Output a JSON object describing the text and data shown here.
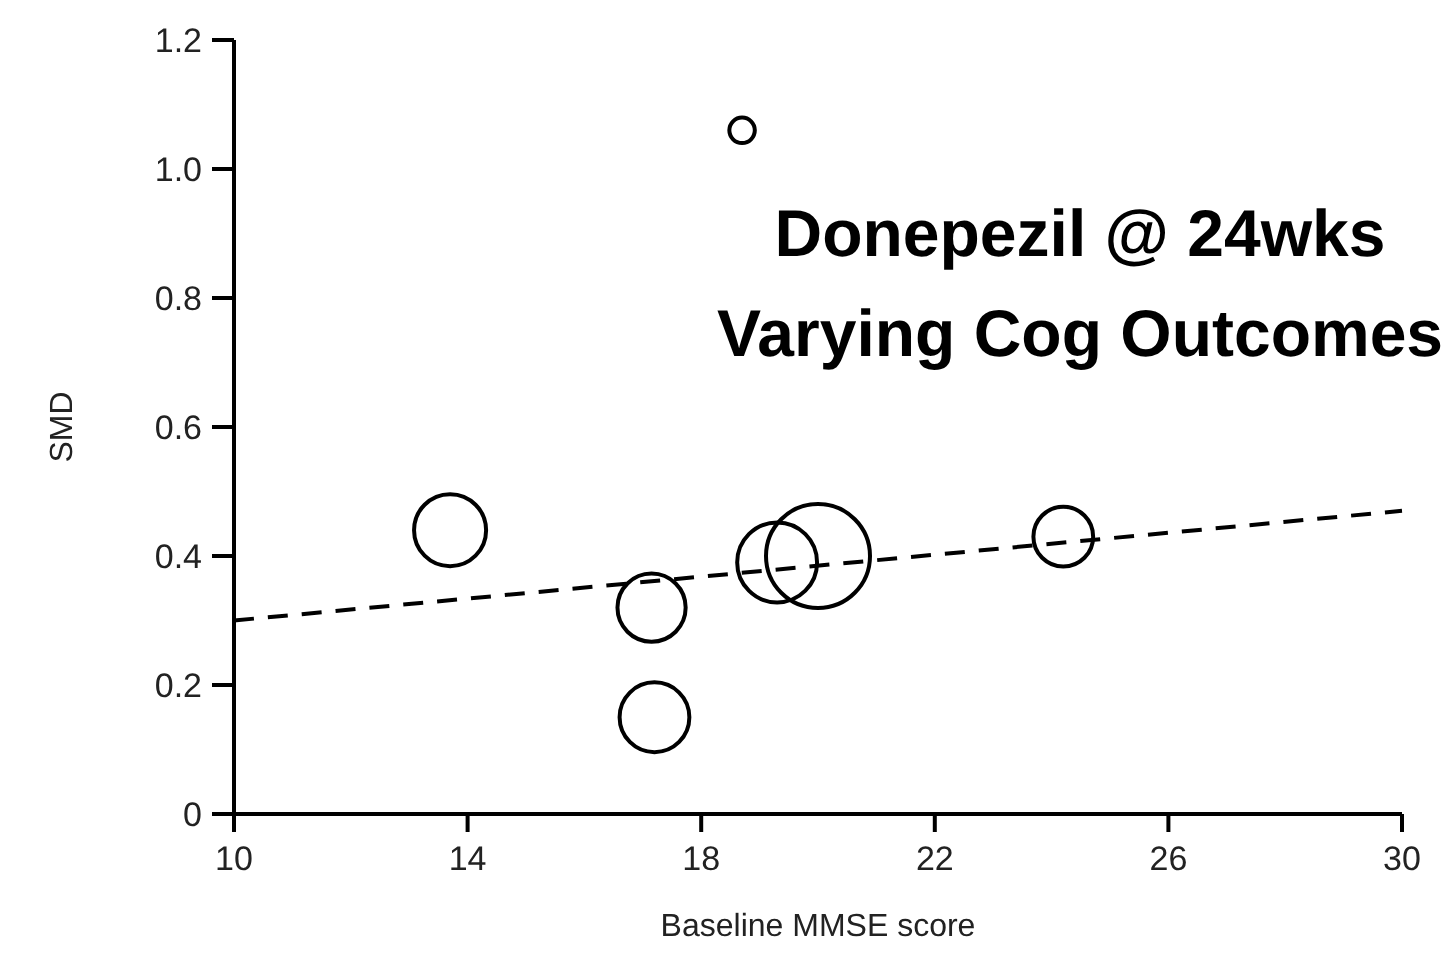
{
  "chart_data": {
    "type": "bubble",
    "title": "Donepezil @ 24wks\nVarying Cog Outcomes",
    "xlabel": "Baseline MMSE score",
    "ylabel": "SMD",
    "xlim": [
      10,
      30
    ],
    "xticks": [
      10,
      14,
      18,
      22,
      26,
      30
    ],
    "ylim": [
      0,
      1.2
    ],
    "yticks": [
      0,
      0.2,
      0.4,
      0.6,
      0.8,
      {
        "value": 1,
        "label": "1.0"
      },
      1.2
    ],
    "grid": false,
    "series": [
      {
        "color": "#000000",
        "x": [
          18.7,
          13.7,
          17.15,
          17.2,
          19.3,
          20.0,
          24.2
        ],
        "values": [
          1.06,
          0.44,
          0.32,
          0.15,
          0.39,
          0.4,
          0.43
        ],
        "sizes": [
          0.06,
          0.48,
          0.43,
          0.45,
          0.59,
          1,
          0.33
        ]
      },
      {
        "type": "line",
        "color": "#000000",
        "line_style": "dashed",
        "marker": "none",
        "x": [
          10,
          30
        ],
        "values": [
          0.3,
          0.47
        ]
      }
    ]
  }
}
